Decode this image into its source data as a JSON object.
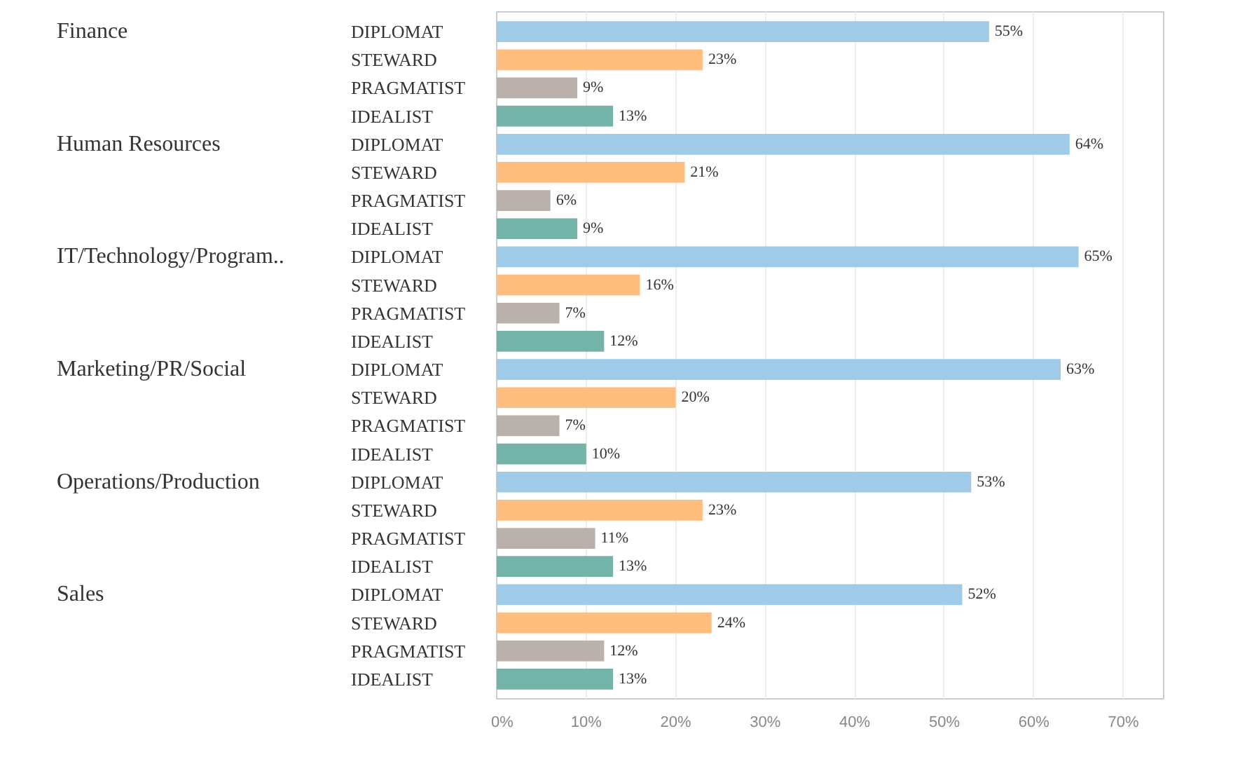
{
  "chart_data": {
    "type": "bar",
    "orientation": "horizontal",
    "categories": [
      "DIPLOMAT",
      "STEWARD",
      "PRAGMATIST",
      "IDEALIST",
      "DIPLOMAT",
      "STEWARD",
      "PRAGMATIST",
      "IDEALIST",
      "DIPLOMAT",
      "STEWARD",
      "PRAGMATIST",
      "IDEALIST",
      "DIPLOMAT",
      "STEWARD",
      "PRAGMATIST",
      "IDEALIST",
      "DIPLOMAT",
      "STEWARD",
      "PRAGMATIST",
      "IDEALIST",
      "DIPLOMAT",
      "STEWARD",
      "PRAGMATIST",
      "IDEALIST"
    ],
    "values": [
      55,
      23,
      9,
      13,
      64,
      21,
      6,
      9,
      65,
      16,
      7,
      12,
      63,
      20,
      7,
      10,
      53,
      23,
      11,
      13,
      52,
      24,
      12,
      13
    ],
    "value_labels": [
      "55%",
      "23%",
      "9%",
      "13%",
      "64%",
      "21%",
      "6%",
      "9%",
      "65%",
      "16%",
      "7%",
      "12%",
      "63%",
      "20%",
      "7%",
      "10%",
      "53%",
      "23%",
      "11%",
      "13%",
      "52%",
      "24%",
      "12%",
      "13%"
    ],
    "colors": [
      "#a0cbe8",
      "#ffbe7d",
      "#bab0ac",
      "#73b3a8",
      "#a0cbe8",
      "#ffbe7d",
      "#bab0ac",
      "#73b3a8",
      "#a0cbe8",
      "#ffbe7d",
      "#bab0ac",
      "#73b3a8",
      "#a0cbe8",
      "#ffbe7d",
      "#bab0ac",
      "#73b3a8",
      "#a0cbe8",
      "#ffbe7d",
      "#bab0ac",
      "#73b3a8",
      "#a0cbe8",
      "#ffbe7d",
      "#bab0ac",
      "#73b3a8"
    ],
    "annotations": [
      "Finance",
      "Human Resources",
      "IT/Technology/Program..",
      "Marketing/PR/Social",
      "Operations/Production",
      "Sales"
    ],
    "xlim": [
      0,
      74.5
    ],
    "xticks": [
      {
        "value": 0,
        "label": "0%"
      },
      {
        "value": 10,
        "label": "10%"
      },
      {
        "value": 20,
        "label": "20%"
      },
      {
        "value": 30,
        "label": "30%"
      },
      {
        "value": 40,
        "label": "40%"
      },
      {
        "value": 50,
        "label": "50%"
      },
      {
        "value": 60,
        "label": "60%"
      },
      {
        "value": 70,
        "label": "70%"
      }
    ],
    "grid": "x"
  }
}
